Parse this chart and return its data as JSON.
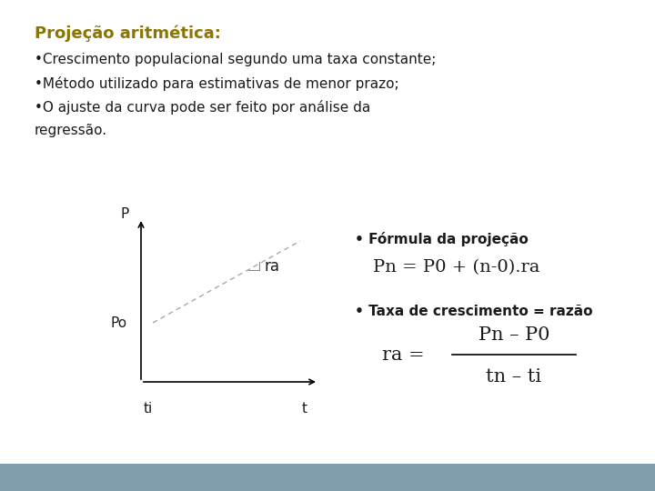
{
  "bg_color": "#e8e8e8",
  "content_bg": "#ffffff",
  "bottom_bar_color": "#7f9faf",
  "title": "Projeção aritmética:",
  "title_color": "#8B7500",
  "bullet1": "Crescimento populacional segundo uma taxa constante;",
  "bullet2": "Método utilizado para estimativas de menor prazo;",
  "bullet3": "O ajuste da curva pode ser feito por análise da",
  "bullet3b": "regressão.",
  "formula_label": "• Fórmula da projeção",
  "formula": "Pn = P0 + (n-0).ra",
  "rate_label": "• Taxa de crescimento = razão",
  "ra_label": "ra = ",
  "ra_numerator": "Pn – P0",
  "ra_denominator": "tn – ti",
  "axis_label_p": "P",
  "axis_label_po": "Po",
  "axis_label_ti": "ti",
  "axis_label_t": "t",
  "slope_label": "ra",
  "text_color": "#1a1a1a",
  "font_size_title": 13,
  "font_size_body": 11,
  "font_size_formula": 14,
  "font_size_axis": 11
}
